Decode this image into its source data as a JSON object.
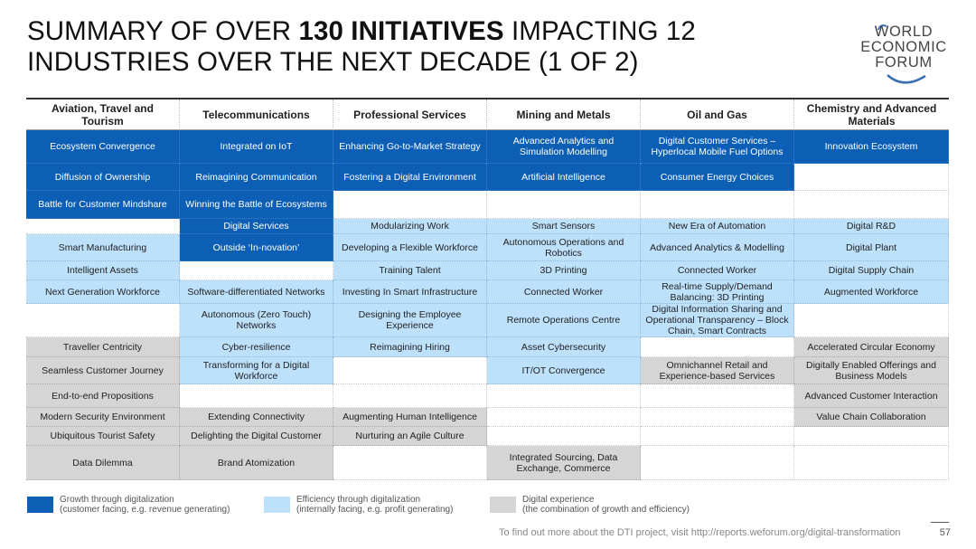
{
  "title": {
    "part1": "SUMMARY OF OVER ",
    "bold": "130 INITIATIVES",
    "part2": " IMPACTING 12",
    "line2": "INDUSTRIES OVER THE NEXT DECADE (1 OF 2)"
  },
  "logo": {
    "line1": "WORLD",
    "line2": "ECONOMIC",
    "line3": "FORUM"
  },
  "headers": [
    "Aviation, Travel and Tourism",
    "Telecommunications",
    "Professional Services",
    "Mining and Metals",
    "Oil and Gas",
    "Chemistry and Advanced Materials"
  ],
  "rows": [
    [
      {
        "t": "Ecosystem Convergence",
        "c": "g"
      },
      {
        "t": "Integrated on IoT",
        "c": "g"
      },
      {
        "t": "Enhancing Go-to-Market Strategy",
        "c": "g"
      },
      {
        "t": "Advanced Analytics and Simulation Modelling",
        "c": "g"
      },
      {
        "t": "Digital Customer Services – Hyperlocal Mobile Fuel Options",
        "c": "g"
      },
      {
        "t": "Innovation Ecosystem",
        "c": "g"
      }
    ],
    [
      {
        "t": "Diffusion of Ownership",
        "c": "g"
      },
      {
        "t": "Reimagining Communication",
        "c": "g"
      },
      {
        "t": "Fostering a Digital Environment",
        "c": "g"
      },
      {
        "t": "Artificial Intelligence",
        "c": "g"
      },
      {
        "t": "Consumer Energy Choices",
        "c": "g"
      },
      {
        "t": "",
        "c": "n"
      }
    ],
    [
      {
        "t": "Battle for Customer Mindshare",
        "c": "g"
      },
      {
        "t": "Winning the Battle of Ecosystems",
        "c": "g"
      },
      {
        "t": "",
        "c": "n"
      },
      {
        "t": "",
        "c": "n"
      },
      {
        "t": "",
        "c": "n"
      },
      {
        "t": "",
        "c": "n"
      }
    ],
    [
      {
        "t": "",
        "c": "n"
      },
      {
        "t": "Digital Services",
        "c": "g"
      },
      {
        "t": "Modularizing Work",
        "c": "e"
      },
      {
        "t": "Smart Sensors",
        "c": "e"
      },
      {
        "t": "New Era of Automation",
        "c": "e"
      },
      {
        "t": "Digital R&D",
        "c": "e"
      }
    ],
    [
      {
        "t": "Smart Manufacturing",
        "c": "e"
      },
      {
        "t": "Outside ‘In-novation’",
        "c": "g"
      },
      {
        "t": "Developing a Flexible Workforce",
        "c": "e"
      },
      {
        "t": "Autonomous Operations and Robotics",
        "c": "e"
      },
      {
        "t": "Advanced Analytics & Modelling",
        "c": "e"
      },
      {
        "t": "Digital Plant",
        "c": "e"
      }
    ],
    [
      {
        "t": "Intelligent Assets",
        "c": "e"
      },
      {
        "t": "",
        "c": "n"
      },
      {
        "t": "Training Talent",
        "c": "e"
      },
      {
        "t": "3D Printing",
        "c": "e"
      },
      {
        "t": "Connected Worker",
        "c": "e"
      },
      {
        "t": "Digital Supply Chain",
        "c": "e"
      }
    ],
    [
      {
        "t": "Next Generation Workforce",
        "c": "e"
      },
      {
        "t": "Software-differentiated Networks",
        "c": "e"
      },
      {
        "t": "Investing In Smart Infrastructure",
        "c": "e"
      },
      {
        "t": "Connected Worker",
        "c": "e"
      },
      {
        "t": "Real-time Supply/Demand Balancing: 3D Printing",
        "c": "e"
      },
      {
        "t": "Augmented Workforce",
        "c": "e"
      }
    ],
    [
      {
        "t": "",
        "c": "n"
      },
      {
        "t": "Autonomous (Zero Touch) Networks",
        "c": "e"
      },
      {
        "t": "Designing the Employee Experience",
        "c": "e"
      },
      {
        "t": "Remote Operations Centre",
        "c": "e"
      },
      {
        "t": "Digital Information Sharing and Operational Transparency – Block Chain, Smart Contracts",
        "c": "e"
      },
      {
        "t": "",
        "c": "n"
      }
    ],
    [
      {
        "t": "Traveller Centricity",
        "c": "d"
      },
      {
        "t": "Cyber-resilience",
        "c": "e"
      },
      {
        "t": "Reimagining Hiring",
        "c": "e"
      },
      {
        "t": "Asset Cybersecurity",
        "c": "e"
      },
      {
        "t": "",
        "c": "n"
      },
      {
        "t": "Accelerated Circular Economy",
        "c": "d"
      }
    ],
    [
      {
        "t": "Seamless Customer Journey",
        "c": "d"
      },
      {
        "t": "Transforming for a Digital Workforce",
        "c": "e"
      },
      {
        "t": "",
        "c": "n"
      },
      {
        "t": "IT/OT Convergence",
        "c": "e"
      },
      {
        "t": "Omnichannel Retail and Experience-based Services",
        "c": "d"
      },
      {
        "t": "Digitally Enabled Offerings and Business Models",
        "c": "d"
      }
    ],
    [
      {
        "t": "End-to-end Propositions",
        "c": "d"
      },
      {
        "t": "",
        "c": "n"
      },
      {
        "t": "",
        "c": "n"
      },
      {
        "t": "",
        "c": "n"
      },
      {
        "t": "",
        "c": "n"
      },
      {
        "t": "Advanced Customer Interaction",
        "c": "d"
      }
    ],
    [
      {
        "t": "Modern Security Environment",
        "c": "d"
      },
      {
        "t": "Extending Connectivity",
        "c": "d"
      },
      {
        "t": "Augmenting Human Intelligence",
        "c": "d"
      },
      {
        "t": "",
        "c": "n"
      },
      {
        "t": "",
        "c": "n"
      },
      {
        "t": "Value Chain Collaboration",
        "c": "d"
      }
    ],
    [
      {
        "t": "Ubiquitous Tourist Safety",
        "c": "d"
      },
      {
        "t": "Delighting the Digital Customer",
        "c": "d"
      },
      {
        "t": "Nurturing an Agile Culture",
        "c": "d"
      },
      {
        "t": "",
        "c": "n"
      },
      {
        "t": "",
        "c": "n"
      },
      {
        "t": "",
        "c": "n"
      }
    ],
    [
      {
        "t": "Data Dilemma",
        "c": "d"
      },
      {
        "t": "Brand Atomization",
        "c": "d"
      },
      {
        "t": "",
        "c": "n"
      },
      {
        "t": "Integrated Sourcing, Data Exchange, Commerce",
        "c": "d"
      },
      {
        "t": "",
        "c": "n"
      },
      {
        "t": "",
        "c": "n"
      }
    ]
  ],
  "legend": [
    {
      "line1": "Growth through digitalization",
      "line2": "(customer facing, e.g. revenue generating)",
      "color": "#0c5fb4"
    },
    {
      "line1": "Efficiency through digitalization",
      "line2": "(internally facing, e.g. profit generating)",
      "color": "#bde0fb"
    },
    {
      "line1": "Digital experience",
      "line2": "(the combination of growth and efficiency)",
      "color": "#d5d5d5"
    }
  ],
  "footer": "To find out more about the DTI project, visit http://reports.weforum.org/digital-transformation",
  "page_number": "57"
}
